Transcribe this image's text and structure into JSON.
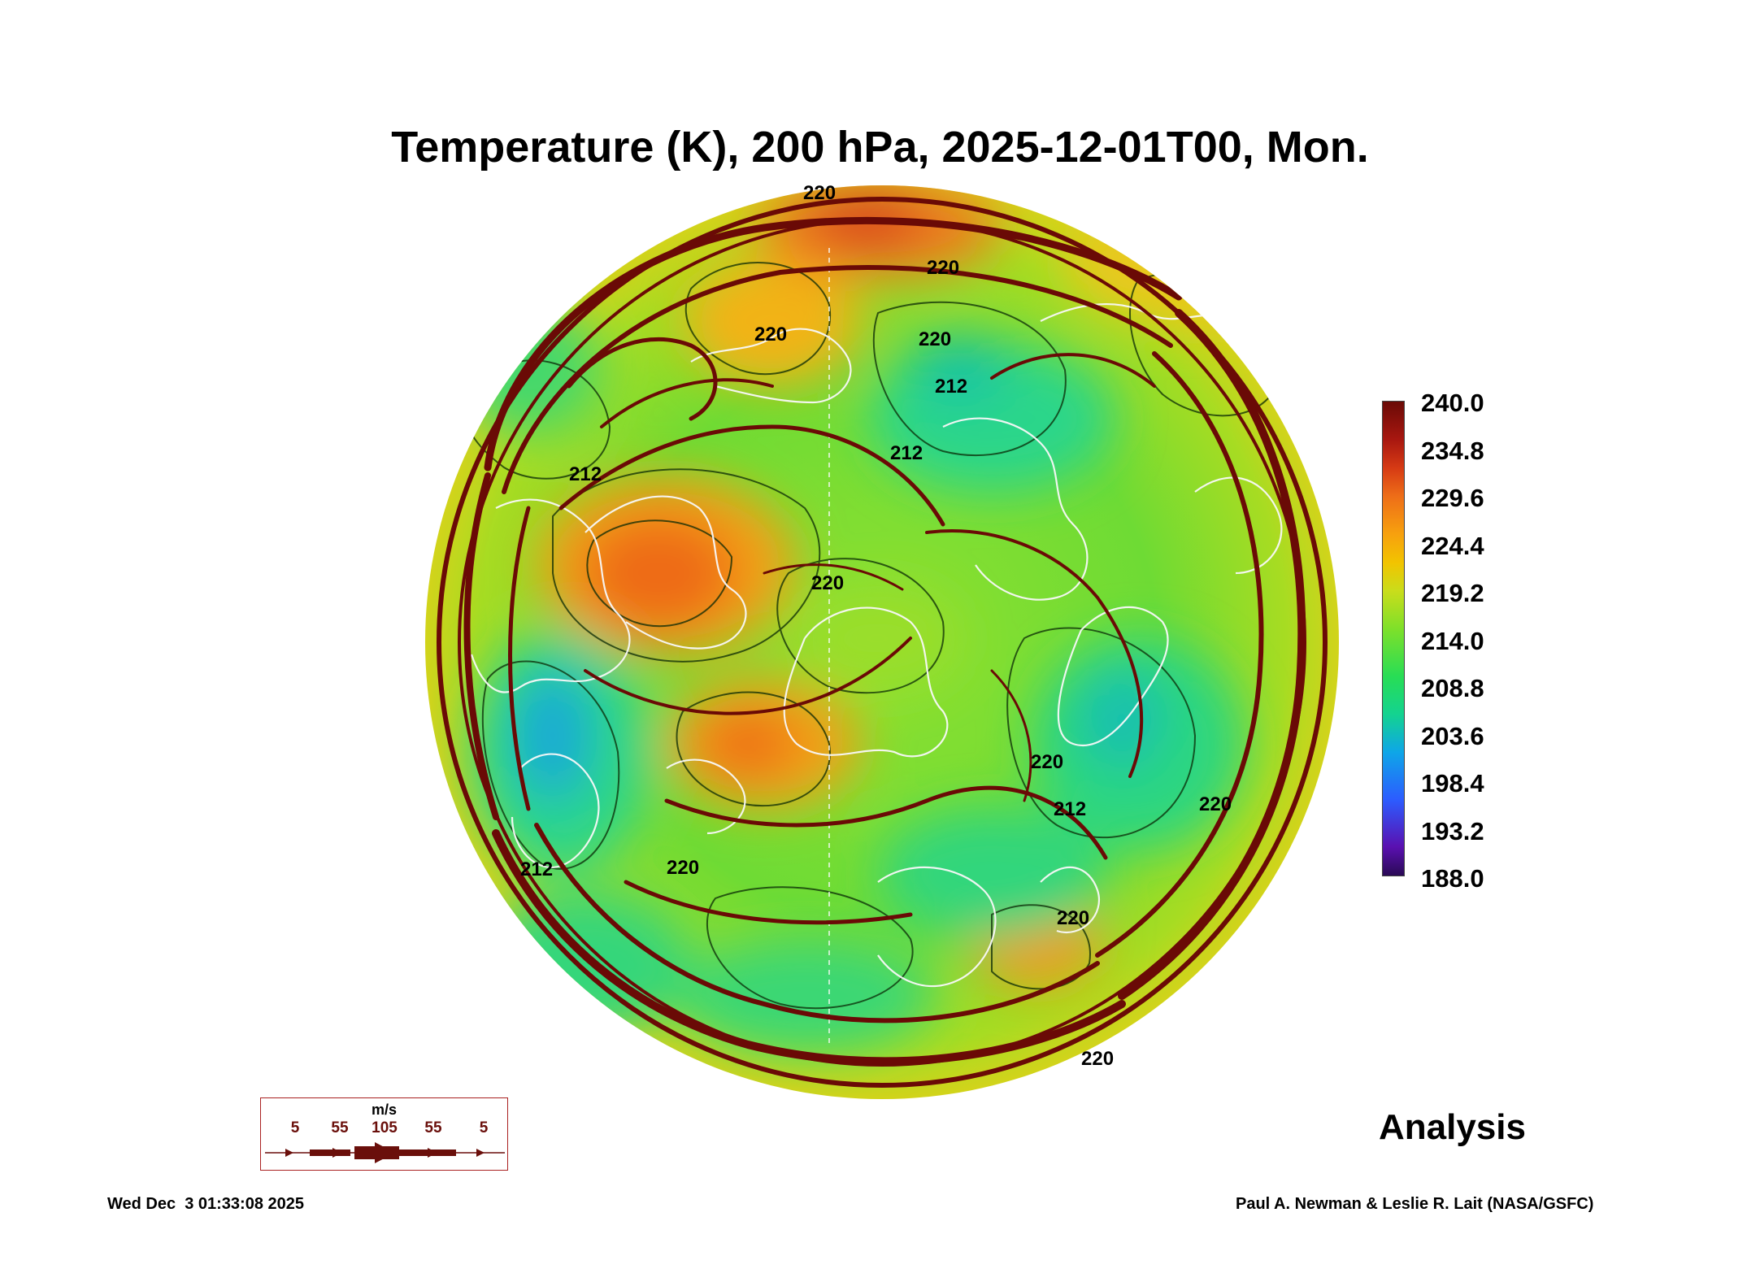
{
  "title": "Temperature (K), 200 hPa, 2025-12-01T00, Mon.",
  "map": {
    "projection": "polar-stereographic (north)",
    "parameter": "Temperature (K)",
    "level": "200 hPa",
    "fields": [
      "temperature-shading",
      "temperature-contours",
      "wind-streamlines",
      "coastlines"
    ],
    "contour_labels": [
      "220",
      "220",
      "220",
      "220",
      "220",
      "220",
      "212",
      "212",
      "212",
      "212",
      "212",
      "220",
      "220",
      "220",
      "220"
    ]
  },
  "colorbar": {
    "unit": "K",
    "min": 188.0,
    "max": 240.0,
    "labels": [
      "240.0",
      "234.8",
      "229.6",
      "224.4",
      "219.2",
      "214.0",
      "208.8",
      "203.6",
      "198.4",
      "193.2",
      "188.0"
    ],
    "colors": [
      "#2a0a55",
      "#5a10b0",
      "#2c5cff",
      "#0ea6e8",
      "#13d390",
      "#28dd55",
      "#7ee02a",
      "#c9dd1b",
      "#f2c400",
      "#f7a10e",
      "#ee6e18",
      "#d63a14",
      "#a81710",
      "#6a0a06"
    ]
  },
  "wind_legend": {
    "unit": "m/s",
    "speeds": [
      "5",
      "55",
      "105",
      "55",
      "5"
    ],
    "color": "#6a0f0b"
  },
  "analysis_label": "Analysis",
  "footer": {
    "timestamp": "Wed Dec  3 01:33:08 2025",
    "credit": "Paul A. Newman & Leslie R. Lait (NASA/GSFC)"
  }
}
